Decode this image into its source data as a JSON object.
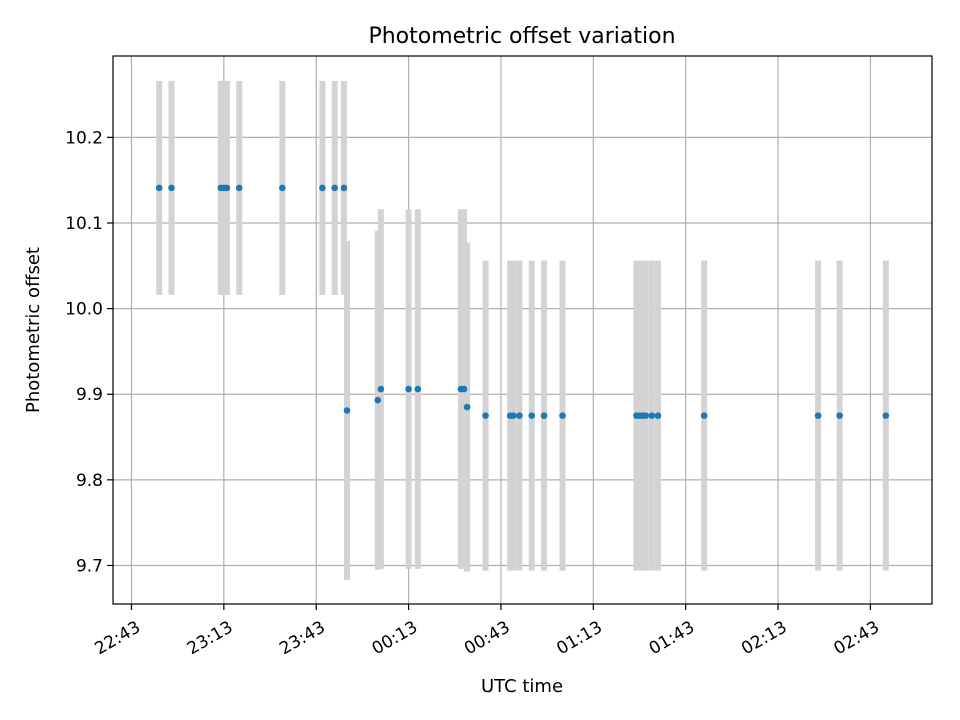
{
  "chart_data": {
    "type": "scatter",
    "title": "Photometric offset variation",
    "xlabel": "UTC time",
    "ylabel": "Photometric offset",
    "x_axis_kind": "time",
    "xlim": [
      "22:37",
      "03:03"
    ],
    "ylim": [
      9.655,
      10.295
    ],
    "x_ticks": [
      "22:43",
      "23:13",
      "23:43",
      "00:13",
      "00:43",
      "01:13",
      "01:43",
      "02:13",
      "02:43"
    ],
    "y_ticks": [
      9.7,
      9.8,
      9.9,
      10.0,
      10.1,
      10.2
    ],
    "grid": true,
    "legend": "none",
    "colors": {
      "point": "#1f77b4",
      "errorbar": "#d3d3d3",
      "grid": "#b0b0b0"
    },
    "series": [
      {
        "points": [
          {
            "time": "22:52",
            "y": 10.141,
            "err": 0.125
          },
          {
            "time": "22:56",
            "y": 10.141,
            "err": 0.125
          },
          {
            "time": "23:12",
            "y": 10.141,
            "err": 0.125
          },
          {
            "time": "23:13",
            "y": 10.141,
            "err": 0.125
          },
          {
            "time": "23:14",
            "y": 10.141,
            "err": 0.125
          },
          {
            "time": "23:18",
            "y": 10.141,
            "err": 0.125
          },
          {
            "time": "23:32",
            "y": 10.141,
            "err": 0.125
          },
          {
            "time": "23:45",
            "y": 10.141,
            "err": 0.125
          },
          {
            "time": "23:49",
            "y": 10.141,
            "err": 0.125
          },
          {
            "time": "23:52",
            "y": 10.141,
            "err": 0.125
          },
          {
            "time": "23:53",
            "y": 9.881,
            "err": 0.198
          },
          {
            "time": "00:03",
            "y": 9.893,
            "err": 0.198
          },
          {
            "time": "00:04",
            "y": 9.906,
            "err": 0.21
          },
          {
            "time": "00:13",
            "y": 9.906,
            "err": 0.21
          },
          {
            "time": "00:16",
            "y": 9.906,
            "err": 0.21
          },
          {
            "time": "00:30",
            "y": 9.906,
            "err": 0.21
          },
          {
            "time": "00:31",
            "y": 9.906,
            "err": 0.21
          },
          {
            "time": "00:32",
            "y": 9.885,
            "err": 0.192
          },
          {
            "time": "00:38",
            "y": 9.875,
            "err": 0.181
          },
          {
            "time": "00:46",
            "y": 9.875,
            "err": 0.181
          },
          {
            "time": "00:47",
            "y": 9.875,
            "err": 0.181
          },
          {
            "time": "00:49",
            "y": 9.875,
            "err": 0.181
          },
          {
            "time": "00:53",
            "y": 9.875,
            "err": 0.181
          },
          {
            "time": "00:57",
            "y": 9.875,
            "err": 0.181
          },
          {
            "time": "01:03",
            "y": 9.875,
            "err": 0.181
          },
          {
            "time": "01:27",
            "y": 9.875,
            "err": 0.181
          },
          {
            "time": "01:28",
            "y": 9.875,
            "err": 0.181
          },
          {
            "time": "01:29",
            "y": 9.875,
            "err": 0.181
          },
          {
            "time": "01:30",
            "y": 9.875,
            "err": 0.181
          },
          {
            "time": "01:32",
            "y": 9.875,
            "err": 0.181
          },
          {
            "time": "01:34",
            "y": 9.875,
            "err": 0.181
          },
          {
            "time": "01:49",
            "y": 9.875,
            "err": 0.181
          },
          {
            "time": "02:26",
            "y": 9.875,
            "err": 0.181
          },
          {
            "time": "02:33",
            "y": 9.875,
            "err": 0.181
          },
          {
            "time": "02:48",
            "y": 9.875,
            "err": 0.181
          }
        ]
      }
    ]
  }
}
